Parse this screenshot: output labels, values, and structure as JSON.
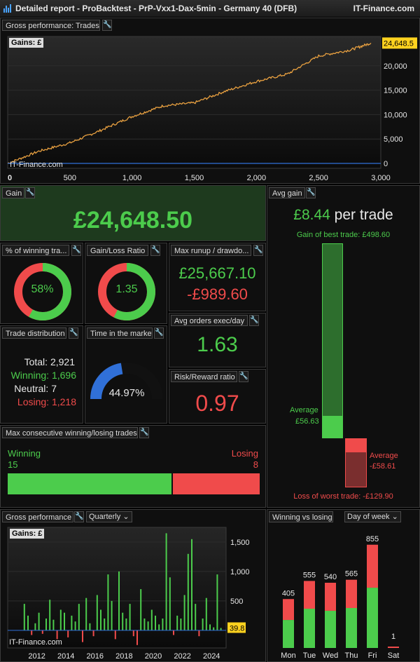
{
  "window": {
    "title": "Detailed report - ProBacktest - PrP-Vxx1-Dax-5min - Germany 40 (DFB)",
    "brand": "IT-Finance.com"
  },
  "gross_trades": {
    "title": "Gross performance: Trades",
    "gains_label": "Gains: £",
    "watermark": "IT-Finance.com",
    "last_value": "24,648.5",
    "y_ticks": [
      "24,648.5",
      "20,000",
      "15,000",
      "10,000",
      "5,000",
      "0"
    ],
    "x_ticks": [
      "0",
      "500",
      "1,000",
      "1,500",
      "2,000",
      "2,500",
      "3,000"
    ],
    "chart_data": {
      "type": "line",
      "x": [
        0,
        250,
        500,
        750,
        1000,
        1250,
        1500,
        1750,
        2000,
        2250,
        2500,
        2750,
        2921
      ],
      "values": [
        0,
        2500,
        4200,
        6800,
        9600,
        11800,
        12400,
        14800,
        16800,
        18300,
        22000,
        23200,
        24648.5
      ],
      "xlim": [
        0,
        3000
      ],
      "ylim": [
        -1000,
        26000
      ],
      "xlabel": "",
      "ylabel": "",
      "grid": true
    }
  },
  "gain": {
    "title": "Gain",
    "value": "£24,648.50"
  },
  "avg_gain": {
    "title": "Avg gain",
    "value": "£8.44",
    "suffix": "per trade",
    "best_label": "Gain of best trade: £498.60",
    "avg_win_label": "Average",
    "avg_win_value": "£56.63",
    "avg_loss_label": "Average",
    "avg_loss_value": "-£58.61",
    "worst_label": "Loss of worst trade: -£129.90",
    "best_trade": 498.6,
    "avg_win": 56.63,
    "avg_loss": 58.61,
    "worst_trade": 129.9
  },
  "winning_pct": {
    "title": "% of winning tra...",
    "value": "58%",
    "fraction": 0.58
  },
  "gain_loss": {
    "title": "Gain/Loss Ratio",
    "value": "1.35",
    "fraction": 0.574
  },
  "runup": {
    "title": "Max runup / drawdo...",
    "runup": "£25,667.10",
    "drawdown": "-£989.60"
  },
  "avg_orders": {
    "title": "Avg orders exec/day",
    "value": "1.63"
  },
  "risk_reward": {
    "title": "Risk/Reward ratio",
    "value": "0.97"
  },
  "trade_dist": {
    "title": "Trade distribution",
    "total_label": "Total:",
    "total": "2,921",
    "winning_label": "Winning:",
    "winning": "1,696",
    "neutral_label": "Neutral:",
    "neutral": "7",
    "losing_label": "Losing:",
    "losing": "1,218"
  },
  "time_market": {
    "title": "Time in the market",
    "value": "44.97%",
    "fraction": 0.4497
  },
  "max_consec": {
    "title": "Max consecutive winning/losing trades",
    "winning_label": "Winning",
    "winning": "15",
    "losing_label": "Losing",
    "losing": "8",
    "win_count": 15,
    "loss_count": 8
  },
  "gross_perf": {
    "title": "Gross performance",
    "period": "Quarterly",
    "gains_label": "Gains: £",
    "watermark": "IT-Finance.com",
    "last_value": "39.8",
    "y_ticks": [
      "1,500",
      "1,000",
      "500"
    ],
    "x_ticks": [
      "2012",
      "2014",
      "2016",
      "2018",
      "2020",
      "2022",
      "2024"
    ],
    "chart_data": {
      "type": "bar",
      "x": [
        2011.0,
        2011.25,
        2011.5,
        2011.75,
        2012.0,
        2012.25,
        2012.5,
        2012.75,
        2013.0,
        2013.25,
        2013.5,
        2013.75,
        2014.0,
        2014.25,
        2014.5,
        2014.75,
        2015.0,
        2015.25,
        2015.5,
        2015.75,
        2016.0,
        2016.25,
        2016.5,
        2016.75,
        2017.0,
        2017.25,
        2017.5,
        2017.75,
        2018.0,
        2018.25,
        2018.5,
        2018.75,
        2019.0,
        2019.25,
        2019.5,
        2019.75,
        2020.0,
        2020.25,
        2020.5,
        2020.75,
        2021.0,
        2021.25,
        2021.5,
        2021.75,
        2022.0,
        2022.25,
        2022.5,
        2022.75,
        2023.0,
        2023.25,
        2023.5,
        2023.75,
        2024.0,
        2024.25,
        2024.5
      ],
      "values": [
        450,
        250,
        -80,
        120,
        300,
        -60,
        200,
        520,
        180,
        -150,
        350,
        300,
        -120,
        250,
        150,
        450,
        -200,
        550,
        120,
        -100,
        600,
        350,
        200,
        950,
        500,
        -150,
        1000,
        300,
        200,
        450,
        -100,
        -250,
        700,
        200,
        150,
        350,
        250,
        100,
        200,
        1650,
        900,
        -80,
        250,
        200,
        600,
        1300,
        1550,
        450,
        -100,
        200,
        550,
        100,
        50,
        950,
        39.8
      ],
      "ylim": [
        -300,
        1750
      ],
      "xlabel": "",
      "ylabel": ""
    }
  },
  "winning_losing": {
    "title": "Winning vs losing",
    "period": "Day of week",
    "chart_data": {
      "type": "bar",
      "categories": [
        "Mon",
        "Tue",
        "Wed",
        "Thu",
        "Fri",
        "Sat"
      ],
      "series": [
        {
          "name": "Winning",
          "values": [
            232,
            325,
            308,
            331,
            499,
            1
          ]
        },
        {
          "name": "Losing",
          "values": [
            173,
            230,
            232,
            234,
            356,
            0
          ]
        }
      ],
      "totals": [
        "405",
        "555",
        "540",
        "565",
        "855",
        "1"
      ],
      "ylim": [
        0,
        900
      ]
    }
  },
  "colors": {
    "green": "#4ccc4c",
    "red": "#f04b4b",
    "orange": "#e8a040",
    "blue": "#3070d8",
    "yellow": "#ffd21f"
  }
}
